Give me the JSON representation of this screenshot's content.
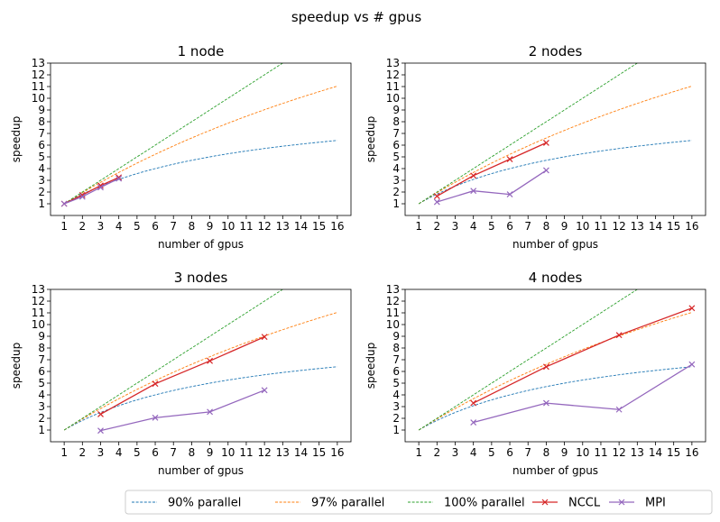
{
  "suptitle": "speedup vs # gpus",
  "chart_data": [
    {
      "type": "line",
      "title": "1 node",
      "xlabel": "number of gpus",
      "ylabel": "speedup",
      "xlim": [
        0.25,
        16.75
      ],
      "ylim": [
        0,
        13
      ],
      "xticks": [
        1,
        2,
        3,
        4,
        5,
        6,
        7,
        8,
        9,
        10,
        11,
        12,
        13,
        14,
        15,
        16
      ],
      "yticks": [
        1,
        2,
        3,
        4,
        5,
        6,
        7,
        8,
        9,
        10,
        11,
        12,
        13
      ],
      "series": [
        {
          "name": "NCCL",
          "x": [
            1,
            2,
            3,
            4
          ],
          "y": [
            1.0,
            1.75,
            2.55,
            3.25
          ]
        },
        {
          "name": "MPI",
          "x": [
            1,
            2,
            3,
            4
          ],
          "y": [
            1.0,
            1.6,
            2.4,
            3.15
          ]
        }
      ]
    },
    {
      "type": "line",
      "title": "2 nodes",
      "xlabel": "number of gpus",
      "ylabel": "speedup",
      "xlim": [
        0.25,
        16.75
      ],
      "ylim": [
        0,
        13
      ],
      "xticks": [
        1,
        2,
        3,
        4,
        5,
        6,
        7,
        8,
        9,
        10,
        11,
        12,
        13,
        14,
        15,
        16
      ],
      "yticks": [
        1,
        2,
        3,
        4,
        5,
        6,
        7,
        8,
        9,
        10,
        11,
        12,
        13
      ],
      "series": [
        {
          "name": "NCCL",
          "x": [
            2,
            4,
            6,
            8
          ],
          "y": [
            1.65,
            3.4,
            4.8,
            6.2
          ]
        },
        {
          "name": "MPI",
          "x": [
            2,
            4,
            6,
            8
          ],
          "y": [
            1.15,
            2.1,
            1.8,
            3.85
          ]
        }
      ]
    },
    {
      "type": "line",
      "title": "3 nodes",
      "xlabel": "number of gpus",
      "ylabel": "speedup",
      "xlim": [
        0.25,
        16.75
      ],
      "ylim": [
        0,
        13
      ],
      "xticks": [
        1,
        2,
        3,
        4,
        5,
        6,
        7,
        8,
        9,
        10,
        11,
        12,
        13,
        14,
        15,
        16
      ],
      "yticks": [
        1,
        2,
        3,
        4,
        5,
        6,
        7,
        8,
        9,
        10,
        11,
        12,
        13
      ],
      "series": [
        {
          "name": "NCCL",
          "x": [
            3,
            6,
            9,
            12
          ],
          "y": [
            2.35,
            4.95,
            6.9,
            8.95
          ]
        },
        {
          "name": "MPI",
          "x": [
            3,
            6,
            9,
            12
          ],
          "y": [
            0.95,
            2.05,
            2.55,
            4.4
          ]
        }
      ]
    },
    {
      "type": "line",
      "title": "4 nodes",
      "xlabel": "number of gpus",
      "ylabel": "speedup",
      "xlim": [
        0.25,
        16.75
      ],
      "ylim": [
        0,
        13
      ],
      "xticks": [
        1,
        2,
        3,
        4,
        5,
        6,
        7,
        8,
        9,
        10,
        11,
        12,
        13,
        14,
        15,
        16
      ],
      "yticks": [
        1,
        2,
        3,
        4,
        5,
        6,
        7,
        8,
        9,
        10,
        11,
        12,
        13
      ],
      "series": [
        {
          "name": "NCCL",
          "x": [
            4,
            8,
            12,
            16
          ],
          "y": [
            3.3,
            6.4,
            9.1,
            11.4
          ]
        },
        {
          "name": "MPI",
          "x": [
            4,
            8,
            12,
            16
          ],
          "y": [
            1.65,
            3.3,
            2.75,
            6.6
          ]
        }
      ]
    }
  ],
  "reference_curves": [
    {
      "name": "90% parallel",
      "parallel_fraction": 0.9
    },
    {
      "name": "97% parallel",
      "parallel_fraction": 0.97
    },
    {
      "name": "100% parallel",
      "parallel_fraction": 1.0
    }
  ],
  "legend": {
    "placement": "bottom-right",
    "entries": [
      {
        "label": "90% parallel",
        "style": "dashed",
        "color": "#1f77b4"
      },
      {
        "label": "97% parallel",
        "style": "dashed",
        "color": "#ff7f0e"
      },
      {
        "label": "100% parallel",
        "style": "dashed",
        "color": "#2ca02c"
      },
      {
        "label": "NCCL",
        "style": "solid-x",
        "color": "#d62728"
      },
      {
        "label": "MPI",
        "style": "solid-x",
        "color": "#9467bd"
      }
    ]
  },
  "colors": {
    "p90": "#1f77b4",
    "p97": "#ff7f0e",
    "p100": "#2ca02c",
    "NCCL": "#d62728",
    "MPI": "#9467bd"
  }
}
